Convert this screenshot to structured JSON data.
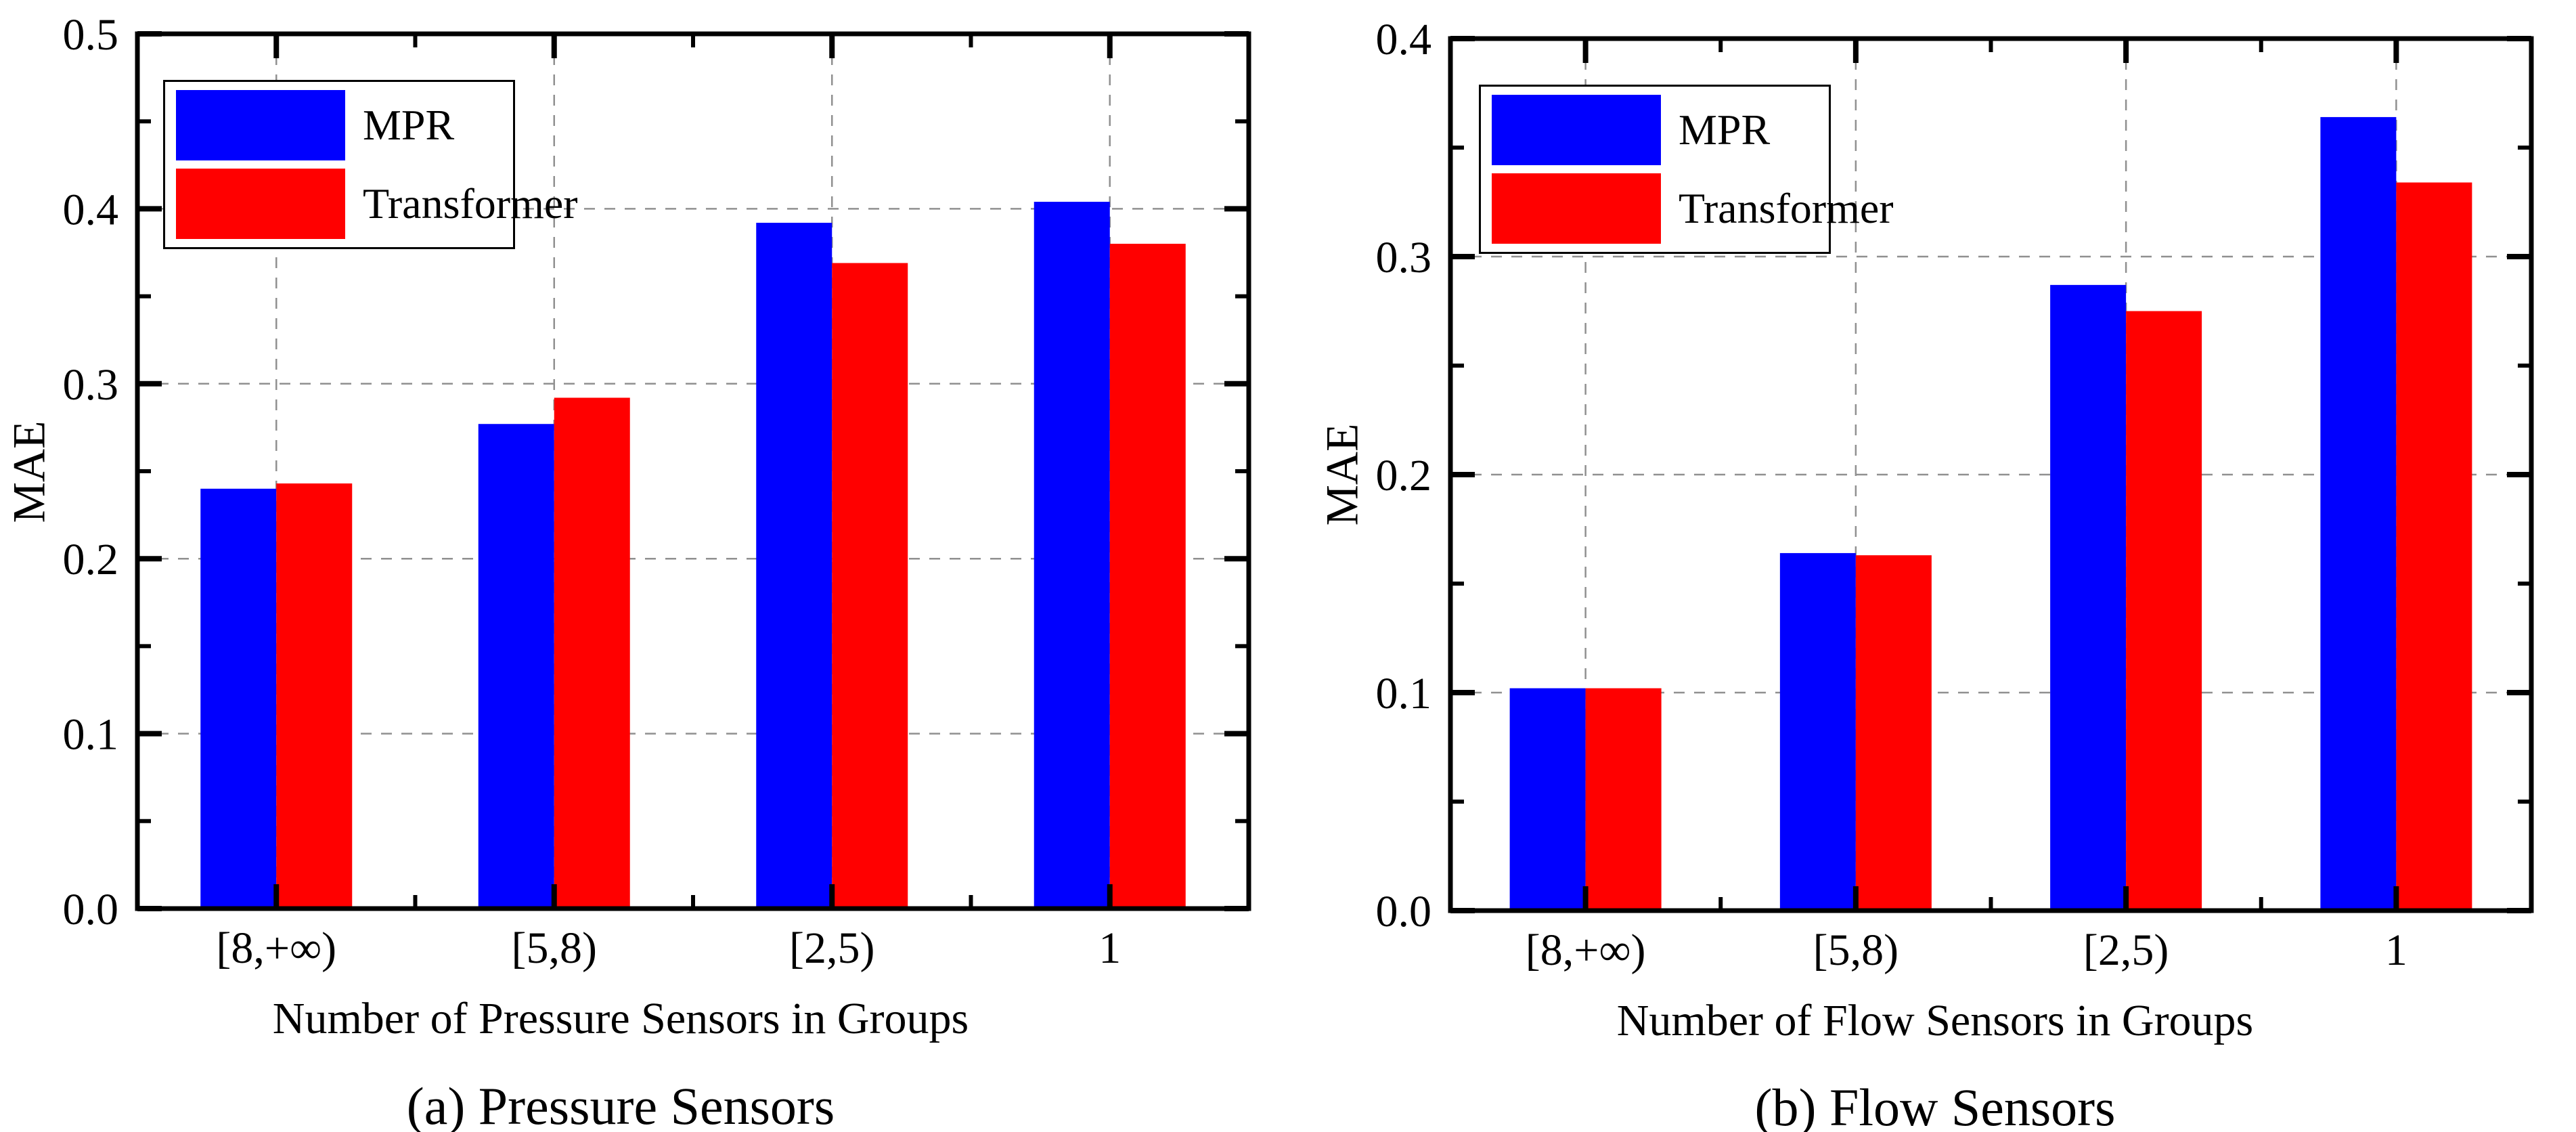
{
  "figure": {
    "background": "#ffffff",
    "grid_color": "#909090",
    "axis_color": "#000000"
  },
  "chart_data": [
    {
      "type": "bar",
      "caption": "(a) Pressure Sensors",
      "xlabel": "Number of Pressure Sensors in Groups",
      "ylabel": "MAE",
      "categories": [
        "[8,+∞)",
        "[5,8)",
        "[2,5)",
        "1"
      ],
      "series": [
        {
          "name": "MPR",
          "color": "#0000ff",
          "values": [
            0.24,
            0.277,
            0.392,
            0.404
          ]
        },
        {
          "name": "Transformer",
          "color": "#ff0000",
          "values": [
            0.243,
            0.292,
            0.369,
            0.38
          ]
        }
      ],
      "ylim": [
        0.0,
        0.5
      ],
      "ytick_step": 0.1,
      "yminor_step": 0.05,
      "ytick_labels": [
        "0.0",
        "0.1",
        "0.2",
        "0.3",
        "0.4",
        "0.5"
      ],
      "grid": {
        "show": true,
        "style": "dashed",
        "axes": "both"
      },
      "legend": {
        "position": "top-left",
        "entries": [
          "MPR",
          "Transformer"
        ]
      }
    },
    {
      "type": "bar",
      "caption": "(b) Flow Sensors",
      "xlabel": "Number of Flow Sensors in Groups",
      "ylabel": "MAE",
      "categories": [
        "[8,+∞)",
        "[5,8)",
        "[2,5)",
        "1"
      ],
      "series": [
        {
          "name": "MPR",
          "color": "#0000ff",
          "values": [
            0.102,
            0.164,
            0.287,
            0.364
          ]
        },
        {
          "name": "Transformer",
          "color": "#ff0000",
          "values": [
            0.102,
            0.163,
            0.275,
            0.334
          ]
        }
      ],
      "ylim": [
        0.0,
        0.4
      ],
      "ytick_step": 0.1,
      "yminor_step": 0.05,
      "ytick_labels": [
        "0.0",
        "0.1",
        "0.2",
        "0.3",
        "0.4"
      ],
      "grid": {
        "show": true,
        "style": "dashed",
        "axes": "both"
      },
      "legend": {
        "position": "top-left",
        "entries": [
          "MPR",
          "Transformer"
        ]
      }
    }
  ]
}
